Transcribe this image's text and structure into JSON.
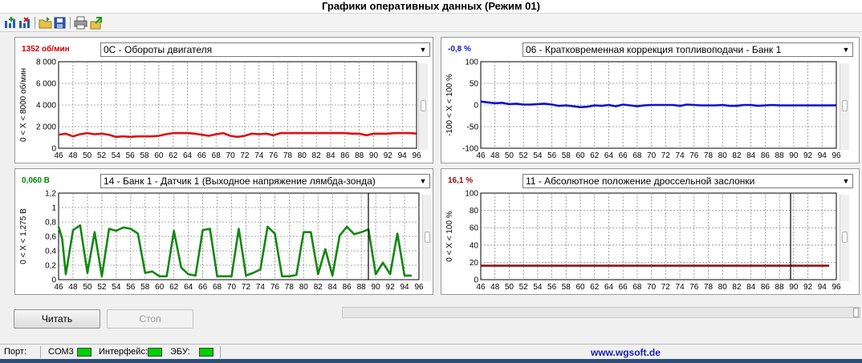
{
  "window": {
    "title": "Графики оперативных данных (Режим 01)"
  },
  "toolbar": {
    "buttons": [
      {
        "icon": "add-graph-icon"
      },
      {
        "icon": "remove-graph-icon"
      },
      {
        "icon": "open-folder-icon"
      },
      {
        "icon": "save-disk-icon"
      },
      {
        "icon": "print-icon"
      },
      {
        "icon": "export-icon"
      }
    ]
  },
  "panels": [
    {
      "value_text": "1352 об/мин",
      "value_color": "#cc0000",
      "selector": "0C - Обороты двигателя",
      "axis_label": "0  <  X  <  8000  об/мин",
      "y_ticks": [
        "8 000",
        "6 000",
        "4 000",
        "2 000",
        "0"
      ],
      "x_ticks": [
        "46",
        "48",
        "50",
        "52",
        "54",
        "56",
        "58",
        "60",
        "62",
        "64",
        "66",
        "68",
        "70",
        "72",
        "74",
        "76",
        "78",
        "80",
        "82",
        "84",
        "86",
        "88",
        "90",
        "92",
        "94",
        "96"
      ],
      "color": "#dd1010",
      "chart_data": {
        "type": "line",
        "ylim": [
          0,
          8000
        ],
        "xlim": [
          46,
          96
        ],
        "x": [
          46,
          47,
          48,
          49,
          50,
          51,
          52,
          53,
          54,
          55,
          56,
          57,
          58,
          59,
          60,
          61,
          62,
          63,
          64,
          65,
          66,
          67,
          68,
          69,
          70,
          71,
          72,
          73,
          74,
          75,
          76,
          77,
          78,
          79,
          80,
          81,
          82,
          83,
          84,
          85,
          86,
          87,
          88,
          89,
          90,
          91,
          92,
          93,
          94,
          95,
          96
        ],
        "values": [
          1250,
          1350,
          1100,
          1300,
          1400,
          1300,
          1350,
          1250,
          1050,
          1100,
          1050,
          1100,
          1100,
          1100,
          1150,
          1300,
          1400,
          1400,
          1400,
          1350,
          1250,
          1150,
          1300,
          1400,
          1150,
          1050,
          1150,
          1350,
          1300,
          1350,
          1200,
          1400,
          1400,
          1400,
          1400,
          1400,
          1400,
          1400,
          1400,
          1400,
          1400,
          1350,
          1350,
          1200,
          1350,
          1350,
          1350,
          1400,
          1400,
          1400,
          1352
        ]
      }
    },
    {
      "value_text": "-0,8 %",
      "value_color": "#1515c8",
      "selector": "06 - Кратковременная коррекция топливоподачи - Банк 1",
      "axis_label": "-100  <  X  <  100  %",
      "y_ticks": [
        "100",
        "50",
        "0",
        "-50",
        "-100"
      ],
      "x_ticks": [
        "46",
        "48",
        "50",
        "52",
        "54",
        "56",
        "58",
        "60",
        "62",
        "64",
        "66",
        "68",
        "70",
        "72",
        "74",
        "76",
        "78",
        "80",
        "82",
        "84",
        "86",
        "88",
        "90",
        "92",
        "94",
        "96"
      ],
      "color": "#1010cc",
      "chart_data": {
        "type": "line",
        "ylim": [
          -100,
          100
        ],
        "xlim": [
          46,
          96
        ],
        "x": [
          46,
          47,
          48,
          49,
          50,
          51,
          52,
          53,
          54,
          55,
          56,
          57,
          58,
          59,
          60,
          61,
          62,
          63,
          64,
          65,
          66,
          67,
          68,
          69,
          70,
          71,
          72,
          73,
          74,
          75,
          76,
          77,
          78,
          79,
          80,
          81,
          82,
          83,
          84,
          85,
          86,
          87,
          88,
          89,
          90,
          91,
          92,
          93,
          94,
          95,
          96
        ],
        "values": [
          8,
          6,
          4,
          5,
          2,
          3,
          1,
          1,
          2,
          3,
          1,
          -2,
          -1,
          -3,
          -5,
          -4,
          -1,
          -2,
          0,
          -3,
          1,
          -1,
          -3,
          -1,
          0,
          0,
          0,
          0,
          -2,
          1,
          0,
          -1,
          -1,
          -1,
          0,
          -2,
          -2,
          0,
          0,
          -2,
          -1,
          0,
          -1,
          -1,
          -1,
          -1,
          -1,
          -1,
          -1,
          -1,
          -0.8
        ]
      }
    },
    {
      "value_text": "0,060 В",
      "value_color": "#008800",
      "selector": "14 - Банк 1 - Датчик 1 (Выходное напряжение лямбда-зонда)",
      "axis_label": "0  <  X  <  1,275  В",
      "y_ticks": [
        "1,2",
        "1",
        "0,8",
        "0,6",
        "0,4",
        "0,2",
        "0"
      ],
      "x_ticks": [
        "46",
        "48",
        "50",
        "52",
        "54",
        "56",
        "58",
        "60",
        "62",
        "64",
        "66",
        "68",
        "70",
        "72",
        "74",
        "76",
        "78",
        "80",
        "82",
        "84",
        "86",
        "88",
        "90",
        "92",
        "94",
        "96"
      ],
      "color": "#118811",
      "chart_data": {
        "type": "line",
        "ylim": [
          0,
          1.275
        ],
        "xlim": [
          46,
          95
        ],
        "x": [
          46,
          46.5,
          47,
          48,
          49,
          50,
          51,
          52,
          53,
          54,
          55,
          56,
          57,
          58,
          59,
          60,
          61,
          62,
          63,
          64,
          65,
          66,
          67,
          68,
          69,
          70,
          71,
          72,
          73,
          74,
          75,
          76,
          77,
          78,
          79,
          80,
          81,
          82,
          83,
          84,
          85,
          86,
          87,
          88,
          89,
          90,
          91,
          92,
          93,
          94,
          95
        ],
        "values": [
          0.78,
          0.6,
          0.08,
          0.73,
          0.8,
          0.1,
          0.7,
          0.05,
          0.75,
          0.72,
          0.77,
          0.75,
          0.68,
          0.1,
          0.12,
          0.05,
          0.05,
          0.72,
          0.18,
          0.08,
          0.06,
          0.73,
          0.75,
          0.05,
          0.05,
          0.05,
          0.75,
          0.06,
          0.1,
          0.15,
          0.78,
          0.68,
          0.05,
          0.05,
          0.07,
          0.7,
          0.7,
          0.08,
          0.45,
          0.06,
          0.65,
          0.78,
          0.67,
          0.7,
          0.74,
          0.08,
          0.25,
          0.08,
          0.68,
          0.06,
          0.06
        ]
      }
    },
    {
      "value_text": "16,1 %",
      "value_color": "#8b0a0a",
      "selector": "11 - Абсолютное положение дроссельной заслонки",
      "axis_label": "0  <  X  <  100  %",
      "y_ticks": [
        "100",
        "80",
        "60",
        "40",
        "20",
        "0"
      ],
      "x_ticks": [
        "46",
        "48",
        "50",
        "52",
        "54",
        "56",
        "58",
        "60",
        "62",
        "64",
        "66",
        "68",
        "70",
        "72",
        "74",
        "76",
        "78",
        "80",
        "82",
        "84",
        "86",
        "88",
        "90",
        "92",
        "94",
        "96"
      ],
      "color": "#8a1515",
      "chart_data": {
        "type": "line",
        "ylim": [
          0,
          100
        ],
        "xlim": [
          46,
          96
        ],
        "x": [
          46,
          48,
          50,
          52,
          54,
          56,
          58,
          60,
          62,
          64,
          66,
          68,
          70,
          72,
          74,
          76,
          78,
          80,
          82,
          84,
          86,
          88,
          90,
          92,
          94,
          95
        ],
        "values": [
          16.1,
          16.1,
          16.1,
          16.1,
          16.1,
          16.1,
          16.1,
          16.1,
          16.1,
          16.1,
          16.1,
          16.1,
          16.1,
          16.1,
          16.1,
          16.1,
          16.1,
          16.1,
          16.1,
          16.1,
          16.1,
          16.1,
          16.1,
          16.1,
          16.1,
          16.1
        ]
      }
    }
  ],
  "controls": {
    "read_label": "Читать",
    "stop_label": "Стоп"
  },
  "status": {
    "port_label": "Порт:",
    "port_value": "COM3",
    "interface_label": "Интерфейс:",
    "ecu_label": "ЭБУ:",
    "url": "www.wgsoft.de"
  }
}
